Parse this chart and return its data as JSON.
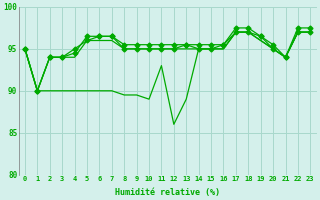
{
  "xlabel": "Humidité relative (%)",
  "xlim_min": -0.5,
  "xlim_max": 23.5,
  "ylim": [
    80,
    100
  ],
  "yticks": [
    80,
    85,
    90,
    95,
    100
  ],
  "xticks": [
    0,
    1,
    2,
    3,
    4,
    5,
    6,
    7,
    8,
    9,
    10,
    11,
    12,
    13,
    14,
    15,
    16,
    17,
    18,
    19,
    20,
    21,
    22,
    23
  ],
  "background_color": "#d4f0eb",
  "grid_color": "#a8d8cc",
  "line_color": "#00aa00",
  "s1": [
    95,
    90,
    94,
    94,
    94,
    96,
    96,
    96,
    95,
    95,
    95,
    95,
    95,
    95,
    95,
    95,
    95,
    97,
    97,
    96,
    95,
    94,
    97,
    97
  ],
  "s2": [
    95,
    90,
    94,
    94,
    95,
    96,
    96.5,
    96.5,
    95.5,
    95.5,
    95.5,
    95.5,
    95.5,
    95.5,
    95.5,
    95.5,
    95.5,
    97.5,
    97.5,
    96.5,
    95.5,
    94,
    97.5,
    97.5
  ],
  "s3": [
    95,
    90,
    94,
    94,
    94.5,
    96.5,
    96.5,
    96.5,
    95,
    95,
    95,
    95,
    95,
    95.5,
    95,
    95,
    95.5,
    97,
    97,
    96.5,
    95,
    94,
    97,
    97
  ],
  "s4": [
    95,
    90,
    90,
    90,
    90,
    90,
    90,
    90,
    89.5,
    89.5,
    89,
    93,
    86,
    89,
    95,
    95,
    95,
    97,
    97,
    96,
    95,
    94,
    97,
    97
  ],
  "s1_marker": false,
  "s2_marker": true,
  "s3_marker": true,
  "s4_marker": false,
  "linewidth": 0.9,
  "markersize": 2.5,
  "xlabel_fontsize": 6.0,
  "xtick_fontsize": 5.0,
  "ytick_fontsize": 5.5
}
